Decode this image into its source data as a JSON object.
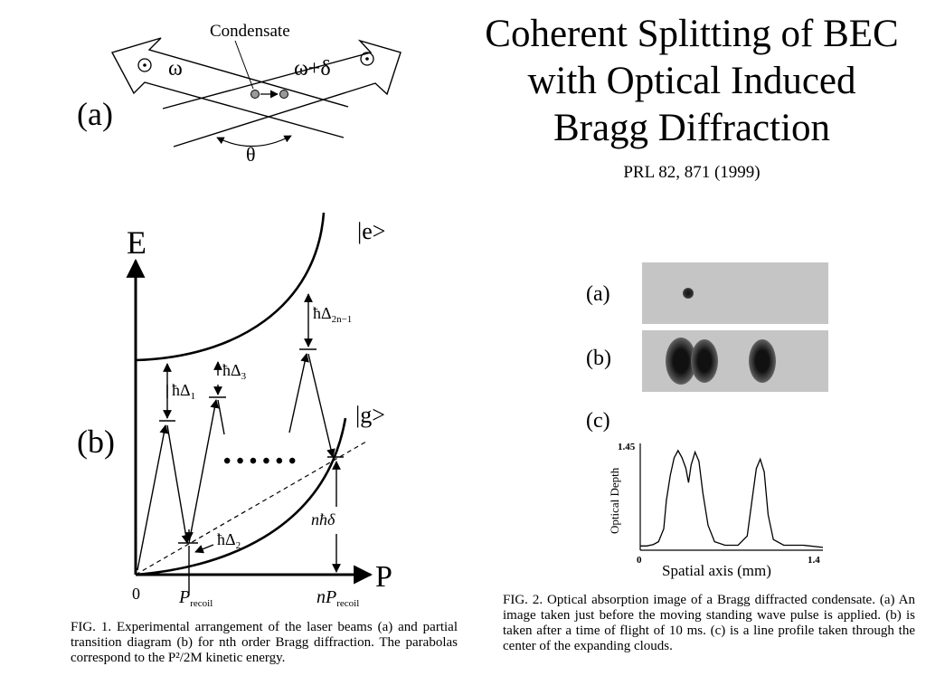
{
  "title": {
    "line1": "Coherent Splitting of BEC",
    "line2": "with Optical Induced",
    "line3": "Bragg Diffraction",
    "reference": "PRL 82, 871 (1999)"
  },
  "fig1": {
    "panel_a": {
      "label": "(a)",
      "condensate": "Condensate",
      "omega": "ω",
      "omega_delta": "ω+δ",
      "theta": "θ"
    },
    "panel_b": {
      "label": "(b)",
      "axis_E": "E",
      "axis_P": "P",
      "origin": "0",
      "state_e": "|e>",
      "state_g": "|g>",
      "d1": "ħΔ",
      "d1_sub": "1",
      "d2": "ħΔ",
      "d2_sub": "2",
      "d3": "ħΔ",
      "d3_sub": "3",
      "d2n": "ħΔ",
      "d2n_sub": "2n−1",
      "nhd": "nħδ",
      "dots": "• • •   • • •",
      "precoil": "P",
      "precoil_sub": "recoil",
      "nprecoil": "nP",
      "nprecoil_sub": "recoil"
    },
    "caption": "FIG. 1.   Experimental arrangement of the laser beams (a) and partial transition diagram (b) for nth order Bragg diffraction. The parabolas correspond to the P²/2M kinetic energy."
  },
  "fig2": {
    "label_a": "(a)",
    "label_b": "(b)",
    "label_c": "(c)",
    "ylabel": "Optical Depth",
    "xlabel": "Spatial axis (mm)",
    "ytick_top": "1.45",
    "xtick_left": "0",
    "xtick_right": "1.4",
    "caption": "FIG. 2.   Optical absorption image of a Bragg diffracted condensate.  (a) An image taken just before the moving standing wave pulse is applied.  (b) is taken after a time of flight of 10 ms.  (c) is a line profile taken through the center of the expanding clouds."
  },
  "chart_data": {
    "type": "line",
    "title": "",
    "xlabel": "Spatial axis (mm)",
    "ylabel": "Optical Depth",
    "xlim": [
      0,
      1.4
    ],
    "ylim": [
      0,
      1.45
    ],
    "series": [
      {
        "values": [
          [
            0.0,
            0.06
          ],
          [
            0.05,
            0.06
          ],
          [
            0.1,
            0.08
          ],
          [
            0.14,
            0.12
          ],
          [
            0.18,
            0.3
          ],
          [
            0.2,
            0.7
          ],
          [
            0.23,
            1.05
          ],
          [
            0.26,
            1.3
          ],
          [
            0.29,
            1.4
          ],
          [
            0.32,
            1.3
          ],
          [
            0.35,
            1.15
          ],
          [
            0.37,
            0.95
          ],
          [
            0.39,
            1.2
          ],
          [
            0.42,
            1.38
          ],
          [
            0.45,
            1.25
          ],
          [
            0.48,
            0.8
          ],
          [
            0.52,
            0.35
          ],
          [
            0.57,
            0.12
          ],
          [
            0.65,
            0.07
          ],
          [
            0.75,
            0.07
          ],
          [
            0.82,
            0.2
          ],
          [
            0.86,
            0.75
          ],
          [
            0.89,
            1.15
          ],
          [
            0.92,
            1.28
          ],
          [
            0.95,
            1.1
          ],
          [
            0.98,
            0.5
          ],
          [
            1.02,
            0.15
          ],
          [
            1.1,
            0.07
          ],
          [
            1.25,
            0.07
          ],
          [
            1.4,
            0.04
          ]
        ]
      }
    ]
  }
}
